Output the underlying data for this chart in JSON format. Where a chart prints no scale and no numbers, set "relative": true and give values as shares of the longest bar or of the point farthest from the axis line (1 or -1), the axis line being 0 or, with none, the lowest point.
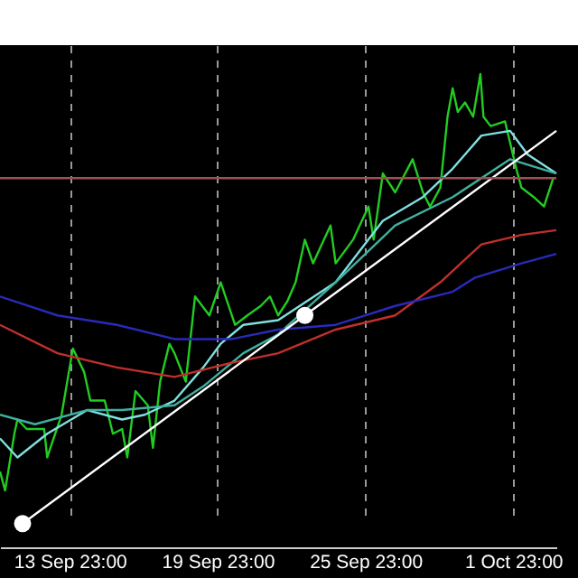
{
  "chart_data": {
    "type": "line",
    "relative": true,
    "grid": "x",
    "xlim": [
      "--09-11T03:00",
      "--10-03T17:00"
    ],
    "xticks": [
      {
        "value": "--09-13T23:00",
        "label": "13 Sep 23:00"
      },
      {
        "value": "--09-19T23:00",
        "label": "19 Sep 23:00"
      },
      {
        "value": "--09-25T23:00",
        "label": "25 Sep 23:00"
      },
      {
        "value": "--10-01T23:00",
        "label": "1 Oct 23:00"
      }
    ],
    "series": [
      {
        "color": "#22cc22",
        "x": [
          "--09-11T03:00",
          "--09-11T08:00",
          "--09-11T17:00",
          "--09-11T20:00",
          "--09-12T05:00",
          "--09-12T22:00",
          "--09-13T01:00",
          "--09-13T15:00",
          "--09-14T02:00",
          "--09-14T13:00",
          "--09-14T19:00",
          "--09-15T09:00",
          "--09-15T17:00",
          "--09-16T02:00",
          "--09-16T07:00",
          "--09-16T15:00",
          "--09-17T03:00",
          "--09-17T08:00",
          "--09-17T15:00",
          "--09-18T00:00",
          "--09-18T05:00",
          "--09-18T16:00",
          "--09-19T01:00",
          "--09-19T15:00",
          "--09-20T02:00",
          "--09-20T16:00",
          "--09-21T04:00",
          "--09-21T17:00",
          "--09-22T02:00",
          "--09-22T10:00",
          "--09-22T19:00",
          "--09-23T03:00",
          "--09-23T12:00",
          "--09-23T20:00",
          "--09-24T13:00",
          "--09-24T18:00",
          "--09-25T11:00",
          "--09-26T02:00",
          "--09-26T07:00",
          "--09-26T16:00",
          "--09-27T04:00",
          "--09-27T21:00",
          "--09-28T07:00",
          "--09-28T14:00",
          "--09-29T00:00",
          "--09-29T07:00",
          "--09-29T12:00",
          "--09-29T17:00",
          "--09-30T00:00",
          "--09-30T08:00",
          "--09-30T15:00",
          "--09-30T18:00",
          "--10-01T01:00",
          "--10-01T15:00",
          "--10-02T02:00",
          "--10-02T07:00",
          "--10-02T19:00",
          "--10-03T05:00",
          "--10-03T14:00"
        ],
        "values": [
          0.16,
          0.12,
          0.24,
          0.27,
          0.25,
          0.25,
          0.19,
          0.28,
          0.42,
          0.37,
          0.31,
          0.31,
          0.24,
          0.25,
          0.19,
          0.33,
          0.3,
          0.21,
          0.35,
          0.43,
          0.41,
          0.35,
          0.53,
          0.49,
          0.56,
          0.47,
          0.49,
          0.51,
          0.53,
          0.49,
          0.52,
          0.56,
          0.65,
          0.6,
          0.68,
          0.6,
          0.65,
          0.72,
          0.65,
          0.79,
          0.75,
          0.82,
          0.75,
          0.72,
          0.76,
          0.91,
          0.97,
          0.92,
          0.94,
          0.91,
          1,
          0.91,
          0.89,
          0.9,
          0.8,
          0.76,
          0.74,
          0.72,
          0.78
        ]
      },
      {
        "color": "#80e0e0",
        "x": [
          "--09-11T03:00",
          "--09-11T20:00",
          "--09-13T01:00",
          "--09-14T16:00",
          "--09-16T02:00",
          "--09-17T00:00",
          "--09-18T05:00",
          "--09-19T09:00",
          "--09-20T02:00",
          "--09-21T00:00",
          "--09-22T10:00",
          "--09-24T18:00",
          "--09-26T16:00",
          "--09-28T07:00",
          "--09-29T12:00",
          "--09-30T16:00",
          "--10-01T20:00",
          "--10-02T13:00",
          "--10-03T17:00"
        ],
        "values": [
          0.23,
          0.19,
          0.24,
          0.29,
          0.27,
          0.28,
          0.31,
          0.38,
          0.43,
          0.47,
          0.48,
          0.56,
          0.69,
          0.74,
          0.8,
          0.87,
          0.88,
          0.83,
          0.79
        ]
      },
      {
        "color": "#40b0a0",
        "x": [
          "--09-11T03:00",
          "--09-12T13:00",
          "--09-14T16:00",
          "--09-16T02:00",
          "--09-18T05:00",
          "--09-19T09:00",
          "--09-21T00:00",
          "--09-22T10:00",
          "--09-24T18:00",
          "--09-27T04:00",
          "--09-29T12:00",
          "--10-01T20:00",
          "--10-03T17:00"
        ],
        "values": [
          0.28,
          0.26,
          0.29,
          0.29,
          0.3,
          0.34,
          0.41,
          0.45,
          0.56,
          0.68,
          0.74,
          0.82,
          0.79
        ]
      },
      {
        "color": "#c0302a",
        "x": [
          "--09-11T03:00",
          "--09-13T11:00",
          "--09-15T21:00",
          "--09-18T05:00",
          "--09-20T13:00",
          "--09-22T10:00",
          "--09-24T18:00",
          "--09-27T04:00",
          "--09-29T00:00",
          "--09-30T16:00",
          "--10-02T07:00",
          "--10-03T17:00"
        ],
        "values": [
          0.47,
          0.41,
          0.38,
          0.36,
          0.39,
          0.41,
          0.46,
          0.49,
          0.56,
          0.64,
          0.66,
          0.67
        ]
      },
      {
        "color": "#2a2ab8",
        "x": [
          "--09-11T03:00",
          "--09-13T11:00",
          "--09-15T21:00",
          "--09-18T05:00",
          "--09-20T13:00",
          "--09-22T10:00",
          "--09-24T18:00",
          "--09-27T04:00",
          "--09-29T12:00",
          "--09-30T10:00",
          "--10-02T07:00",
          "--10-03T17:00"
        ],
        "values": [
          0.53,
          0.49,
          0.47,
          0.44,
          0.44,
          0.46,
          0.47,
          0.51,
          0.54,
          0.57,
          0.6,
          0.62
        ]
      },
      {
        "color": "#ffffff",
        "x": [
          "--09-12T01:00",
          "--09-23T12:00",
          "--10-03T17:00"
        ],
        "values": [
          0.05,
          0.49,
          0.88
        ]
      },
      {
        "type": "scatter",
        "color": "#ffffff",
        "x": [
          "--09-12T01:00",
          "--09-23T12:00"
        ],
        "values": [
          0.05,
          0.49
        ]
      }
    ],
    "ref_lines": [
      {
        "axis": "y",
        "value": 0.78,
        "color": "#a05050"
      }
    ]
  }
}
